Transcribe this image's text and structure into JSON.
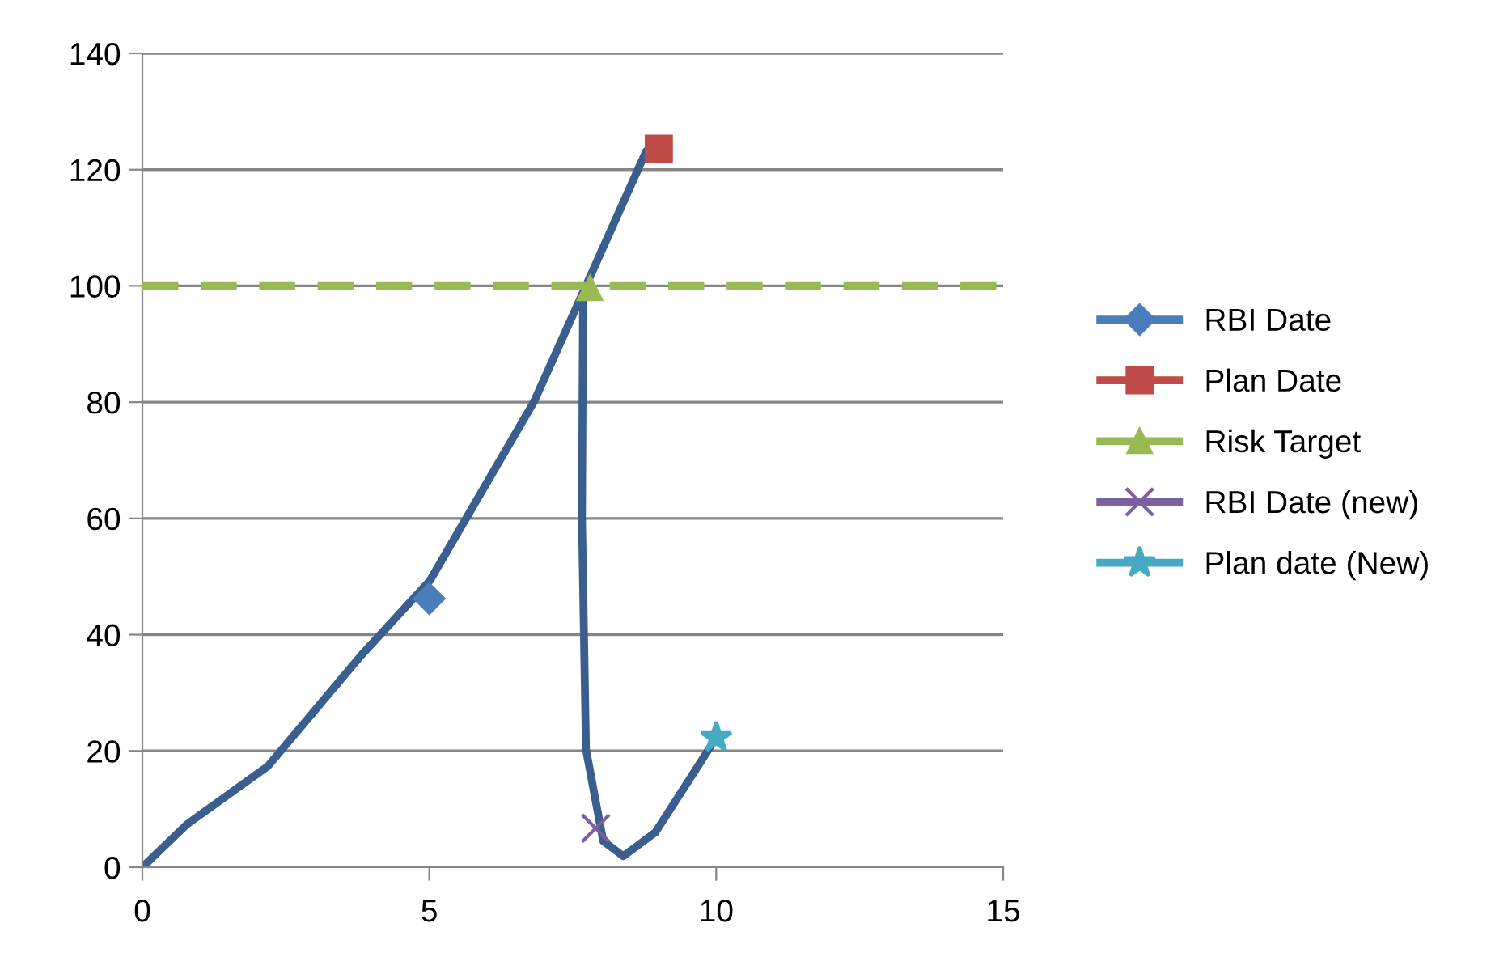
{
  "chart_data": {
    "type": "scatter",
    "xlim": [
      0,
      15
    ],
    "xticks": [
      0,
      5,
      10,
      15
    ],
    "ylim": [
      0,
      140
    ],
    "yticks": [
      0,
      20,
      40,
      60,
      80,
      100,
      120,
      140
    ],
    "grid": "y",
    "legend": "right",
    "series": [
      {
        "type": "line",
        "marker": "none",
        "color": "#3a5f8e",
        "x": [
          0,
          0.78,
          2.19,
          3.8,
          5.01,
          6.82,
          7.68,
          8.78
        ],
        "values": [
          0,
          7.4,
          17.4,
          36.3,
          49.3,
          80.0,
          98.9,
          123.2
        ]
      },
      {
        "type": "line",
        "marker": "none",
        "color": "#3a5f8e",
        "x": [
          7.68,
          7.66,
          7.73,
          8.03,
          8.38,
          8.94,
          10.0
        ],
        "values": [
          98,
          60.1,
          20.3,
          4.5,
          1.9,
          6.0,
          22.3
        ]
      },
      {
        "name": "RBI Date",
        "marker": "diamond",
        "color": "#4a7ebb",
        "x": [
          5.0
        ],
        "values": [
          46.2
        ]
      },
      {
        "name": "Plan Date",
        "marker": "square",
        "color": "#be4b48",
        "x": [
          9.0
        ],
        "values": [
          123.6
        ]
      },
      {
        "name": "Risk Target",
        "marker": "triangle",
        "color": "#98b954",
        "x": [
          7.8
        ],
        "values": [
          99.6
        ]
      },
      {
        "name": "RBI Date (new)",
        "marker": "cross",
        "color": "#7d60a0",
        "x": [
          7.9
        ],
        "values": [
          6.7
        ]
      },
      {
        "name": "Plan date (New)",
        "marker": "star",
        "color": "#46aac5",
        "x": [
          10.0
        ],
        "values": [
          22.3
        ]
      }
    ],
    "ref_lines": [
      {
        "axis": "y",
        "value": 100,
        "color": "#98b954",
        "line_style": "dashed"
      }
    ]
  }
}
